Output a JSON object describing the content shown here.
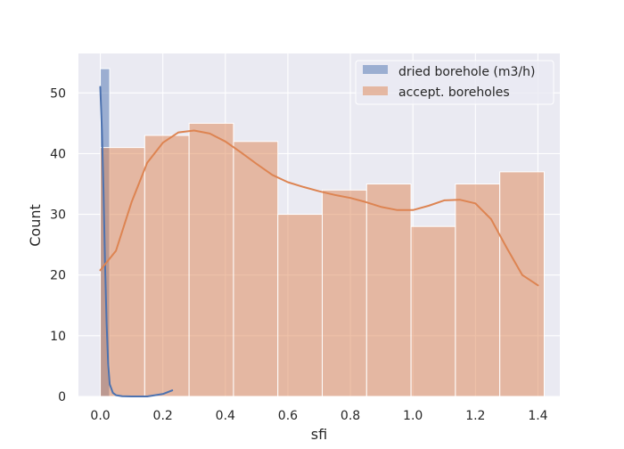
{
  "chart_data": {
    "type": "bar",
    "title": "",
    "xlabel": "sfi",
    "ylabel": "Count",
    "xlim": [
      -0.07,
      1.47
    ],
    "ylim": [
      0,
      56.5
    ],
    "xticks": [
      0.0,
      0.2,
      0.4,
      0.6,
      0.8,
      1.0,
      1.2,
      1.4
    ],
    "xtick_labels": [
      "0.0",
      "0.2",
      "0.4",
      "0.6",
      "0.8",
      "1.0",
      "1.2",
      "1.4"
    ],
    "yticks": [
      0,
      10,
      20,
      30,
      40,
      50
    ],
    "ytick_labels": [
      "0",
      "10",
      "20",
      "30",
      "40",
      "50"
    ],
    "grid": true,
    "background": "#eaeaf2",
    "legend_position": "top-right",
    "series": [
      {
        "name": "dried borehole (m3/h)",
        "color": "#4c72b0",
        "bins": [
          {
            "x0": 0.0,
            "x1": 0.03,
            "count": 54
          }
        ],
        "kde": {
          "x": [
            0.0,
            0.005,
            0.01,
            0.015,
            0.02,
            0.025,
            0.03,
            0.04,
            0.05,
            0.07,
            0.1,
            0.15,
            0.2,
            0.23
          ],
          "y": [
            51,
            44,
            34,
            22,
            12,
            5.5,
            2,
            0.6,
            0.2,
            0.05,
            0.0,
            0.0,
            0.4,
            1.0
          ]
        }
      },
      {
        "name": "accept. boreholes",
        "color": "#dd8452",
        "bins": [
          {
            "x0": 0.0,
            "x1": 0.142,
            "count": 41
          },
          {
            "x0": 0.142,
            "x1": 0.284,
            "count": 43
          },
          {
            "x0": 0.284,
            "x1": 0.426,
            "count": 45
          },
          {
            "x0": 0.426,
            "x1": 0.568,
            "count": 42
          },
          {
            "x0": 0.568,
            "x1": 0.71,
            "count": 30
          },
          {
            "x0": 0.71,
            "x1": 0.852,
            "count": 34
          },
          {
            "x0": 0.852,
            "x1": 0.994,
            "count": 35
          },
          {
            "x0": 0.994,
            "x1": 1.136,
            "count": 28
          },
          {
            "x0": 1.136,
            "x1": 1.278,
            "count": 35
          },
          {
            "x0": 1.278,
            "x1": 1.42,
            "count": 37
          }
        ],
        "kde": {
          "x": [
            0.0,
            0.05,
            0.1,
            0.15,
            0.2,
            0.25,
            0.3,
            0.35,
            0.4,
            0.45,
            0.5,
            0.55,
            0.6,
            0.65,
            0.7,
            0.75,
            0.8,
            0.85,
            0.9,
            0.95,
            1.0,
            1.05,
            1.1,
            1.15,
            1.2,
            1.25,
            1.3,
            1.35,
            1.4
          ],
          "y": [
            20.8,
            24,
            32,
            38.5,
            41.8,
            43.5,
            43.8,
            43.3,
            42,
            40.2,
            38.3,
            36.5,
            35.3,
            34.5,
            33.8,
            33.2,
            32.7,
            32,
            31.2,
            30.7,
            30.7,
            31.4,
            32.3,
            32.4,
            31.8,
            29.2,
            24.5,
            20,
            18.3
          ]
        }
      }
    ]
  }
}
